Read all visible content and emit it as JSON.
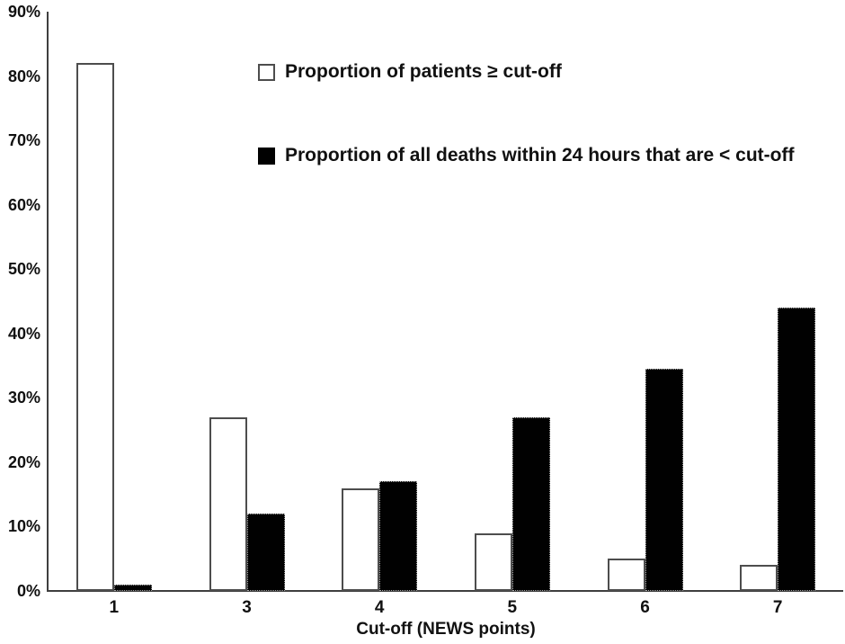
{
  "figure": {
    "background": "#ffffff",
    "text_color": "#111111",
    "axis_color": "#3f3f3f",
    "open_bar_fill": "#ffffff",
    "open_bar_border": "#4d4d4d",
    "filled_bar_fill": "#010101"
  },
  "chart_data": {
    "type": "bar",
    "title": "",
    "xlabel": "Cut-off (NEWS points)",
    "ylabel": "",
    "categories": [
      "1",
      "3",
      "4",
      "5",
      "6",
      "7"
    ],
    "series": [
      {
        "name": "Proportion of patients ≥ cut-off",
        "key": "patients-ge-cutoff",
        "style": "open",
        "values": [
          82,
          27,
          16,
          9,
          5,
          4
        ]
      },
      {
        "name": "Proportion of all deaths within 24 hours that are < cut-off",
        "key": "deaths-lt-cutoff",
        "style": "filled",
        "values": [
          1,
          12,
          17,
          27,
          34.5,
          44
        ]
      }
    ],
    "ylim": [
      0,
      90
    ],
    "ytick_step": 10,
    "ytick_labels": [
      "0%",
      "10%",
      "20%",
      "30%",
      "40%",
      "50%",
      "60%",
      "70%",
      "80%",
      "90%"
    ],
    "grid": false,
    "legend_position": "inside-top-center"
  }
}
